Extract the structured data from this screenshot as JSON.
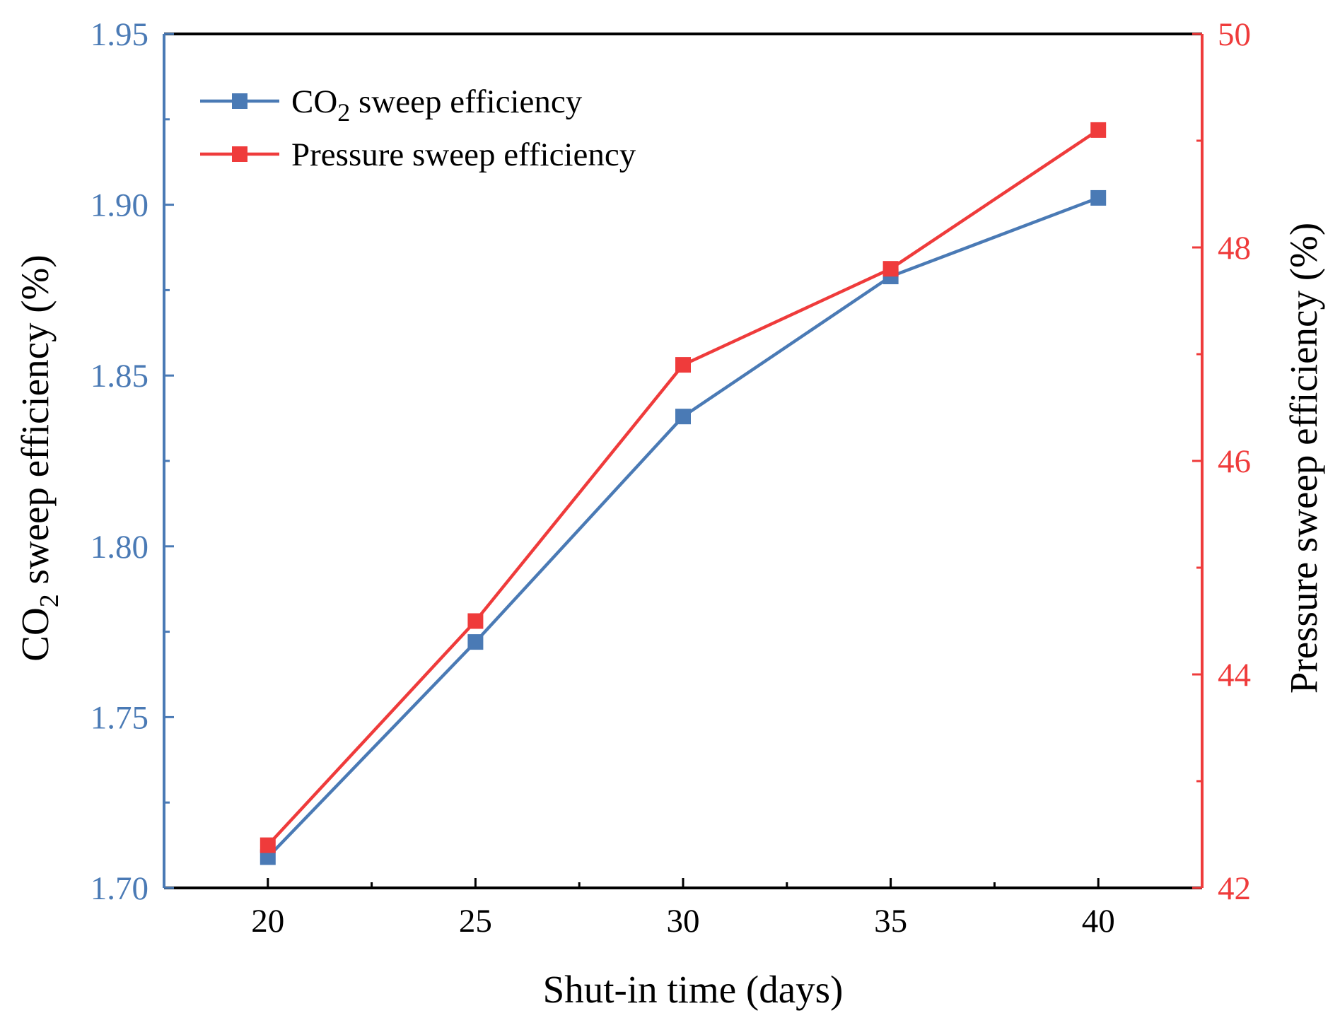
{
  "chart_data": {
    "type": "line",
    "title": "",
    "xlabel": "Shut-in time (days)",
    "ylabel_left_main": "CO",
    "ylabel_left_sub": "2",
    "ylabel_left_rest": " sweep efficiency (%)",
    "ylabel_right": "Pressure sweep efficiency (%)",
    "xlim": [
      17.5,
      42.5
    ],
    "x_ticks": [
      20,
      25,
      30,
      35,
      40
    ],
    "x_tick_labels": [
      "20",
      "25",
      "30",
      "35",
      "40"
    ],
    "ylim_left": [
      1.7,
      1.95
    ],
    "y_left_ticks": [
      1.7,
      1.75,
      1.8,
      1.85,
      1.9,
      1.95
    ],
    "y_left_tick_labels": [
      "1.70",
      "1.75",
      "1.80",
      "1.85",
      "1.90",
      "1.95"
    ],
    "ylim_right": [
      42,
      50
    ],
    "y_right_ticks": [
      42,
      44,
      46,
      48,
      50
    ],
    "y_right_tick_labels": [
      "42",
      "44",
      "46",
      "48",
      "50"
    ],
    "legend_position": "top-left",
    "grid": false,
    "series": [
      {
        "name": "CO2 sweep efficiency",
        "label_main": "CO",
        "label_sub": "2",
        "label_rest": " sweep efficiency",
        "axis": "left",
        "color": "#4a7ab5",
        "x": [
          20,
          25,
          30,
          35,
          40
        ],
        "values": [
          1.709,
          1.772,
          1.838,
          1.879,
          1.902
        ]
      },
      {
        "name": "Pressure sweep efficiency",
        "label_main": "Pressure sweep efficiency",
        "axis": "right",
        "color": "#ef3b3b",
        "x": [
          20,
          25,
          30,
          35,
          40
        ],
        "values": [
          42.4,
          44.5,
          46.9,
          47.8,
          49.1
        ]
      }
    ]
  }
}
